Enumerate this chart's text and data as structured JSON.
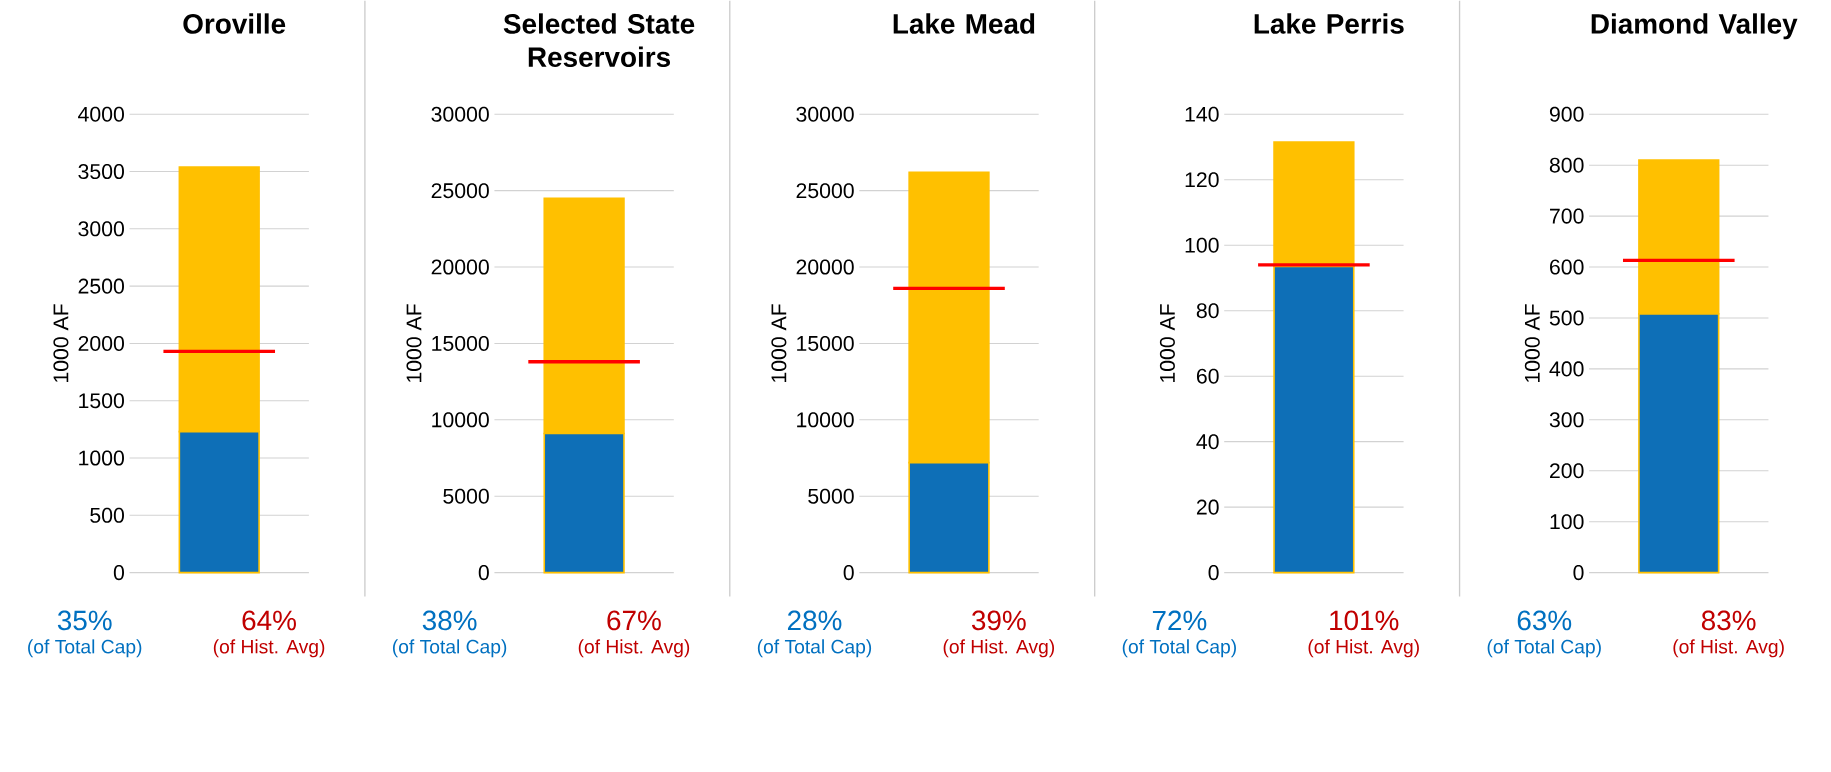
{
  "chart_data": [
    {
      "type": "bar",
      "title": "Oroville",
      "ylabel": "1000 AF",
      "categories": [
        null
      ],
      "stacked": true,
      "grid": "y",
      "ylim": [
        0,
        4000
      ],
      "yticks": [
        0,
        500,
        1000,
        1500,
        2000,
        2500,
        3000,
        3500,
        4000
      ],
      "series": [
        {
          "color": "#0e6fb7",
          "values": [
            1230
          ]
        },
        {
          "color": "#ffc000",
          "values": [
            2310
          ]
        }
      ],
      "ref_lines": [
        {
          "axis": "y",
          "value": 1930,
          "color": "#ff0000"
        }
      ],
      "annotations": [
        "35%",
        "(of Total Cap)",
        "64%",
        "(of Hist. Avg)"
      ]
    },
    {
      "type": "bar",
      "title": "Selected State Reservoirs",
      "ylabel": "1000 AF",
      "categories": [
        null
      ],
      "stacked": true,
      "grid": "y",
      "ylim": [
        0,
        30000
      ],
      "yticks": [
        0,
        5000,
        10000,
        15000,
        20000,
        25000,
        30000
      ],
      "series": [
        {
          "color": "#0e6fb7",
          "values": [
            9100
          ]
        },
        {
          "color": "#ffc000",
          "values": [
            15400
          ]
        }
      ],
      "ref_lines": [
        {
          "axis": "y",
          "value": 13800,
          "color": "#ff0000"
        }
      ],
      "annotations": [
        "38%",
        "(of Total Cap)",
        "67%",
        "(of Hist. Avg)"
      ]
    },
    {
      "type": "bar",
      "title": "Lake Mead",
      "ylabel": "1000 AF",
      "categories": [
        null
      ],
      "stacked": true,
      "grid": "y",
      "ylim": [
        0,
        30000
      ],
      "yticks": [
        0,
        5000,
        10000,
        15000,
        20000,
        25000,
        30000
      ],
      "series": [
        {
          "color": "#0e6fb7",
          "values": [
            7200
          ]
        },
        {
          "color": "#ffc000",
          "values": [
            19000
          ]
        }
      ],
      "ref_lines": [
        {
          "axis": "y",
          "value": 18600,
          "color": "#ff0000"
        }
      ],
      "annotations": [
        "28%",
        "(of Total Cap)",
        "39%",
        "(of Hist. Avg)"
      ]
    },
    {
      "type": "bar",
      "title": "Lake Perris",
      "ylabel": "1000 AF",
      "categories": [
        null
      ],
      "stacked": true,
      "grid": "y",
      "ylim": [
        0,
        140
      ],
      "yticks": [
        0,
        20,
        40,
        60,
        80,
        100,
        120,
        140
      ],
      "series": [
        {
          "color": "#0e6fb7",
          "values": [
            93.5
          ]
        },
        {
          "color": "#ffc000",
          "values": [
            38
          ]
        }
      ],
      "ref_lines": [
        {
          "axis": "y",
          "value": 94,
          "color": "#ff0000"
        }
      ],
      "annotations": [
        "72%",
        "(of Total Cap)",
        "101%",
        "(of Hist. Avg)"
      ]
    },
    {
      "type": "bar",
      "title": "Diamond Valley",
      "ylabel": "1000 AF",
      "categories": [
        null
      ],
      "stacked": true,
      "grid": "y",
      "ylim": [
        0,
        900
      ],
      "yticks": [
        0,
        100,
        200,
        300,
        400,
        500,
        600,
        700,
        800,
        900
      ],
      "series": [
        {
          "color": "#0e6fb7",
          "values": [
            508
          ]
        },
        {
          "color": "#ffc000",
          "values": [
            302
          ]
        }
      ],
      "ref_lines": [
        {
          "axis": "y",
          "value": 613,
          "color": "#ff0000"
        }
      ],
      "annotations": [
        "63%",
        "(of Total Cap)",
        "83%",
        "(of Hist. Avg)"
      ]
    }
  ]
}
